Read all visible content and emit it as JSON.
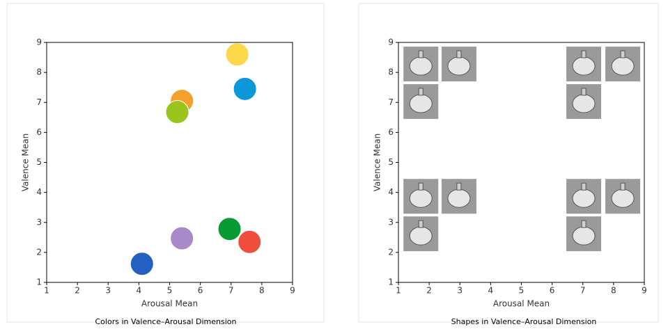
{
  "chart_data": [
    {
      "type": "scatter",
      "title": "Colors in Valence–Arousal Dimension",
      "xlabel": "Arousal Mean",
      "ylabel": "Valence Mean",
      "x": [
        7.2,
        7.45,
        5.4,
        5.25,
        6.95,
        7.6,
        5.4,
        4.1
      ],
      "y": [
        8.6,
        7.45,
        7.05,
        6.68,
        2.78,
        2.35,
        2.47,
        1.62
      ],
      "colors": [
        "#fbd94a",
        "#0c97d8",
        "#f5a02a",
        "#9bc41c",
        "#0a9a34",
        "#f04e3c",
        "#a98ac8",
        "#2460c0"
      ],
      "xlim": [
        1,
        9
      ],
      "ylim": [
        1,
        9
      ],
      "xticks": [
        1,
        2,
        3,
        4,
        5,
        6,
        7,
        8,
        9
      ],
      "yticks": [
        1,
        2,
        3,
        4,
        5,
        6,
        7,
        8,
        9
      ]
    },
    {
      "type": "scatter",
      "title": "Shapes in Valence–Arousal Dimension",
      "xlabel": "Arousal Mean",
      "ylabel": "Valence Mean",
      "x": [
        1.73,
        2.97,
        1.73,
        7.03,
        8.3,
        7.03,
        1.73,
        2.97,
        1.73,
        7.03,
        8.3,
        7.03
      ],
      "y": [
        8.28,
        8.28,
        7.03,
        8.28,
        8.28,
        7.03,
        3.87,
        3.87,
        2.62,
        3.87,
        3.87,
        2.62
      ],
      "marker_color": "#9a9a9a",
      "xlim": [
        1,
        9
      ],
      "ylim": [
        1,
        9
      ],
      "xticks": [
        1,
        2,
        3,
        4,
        5,
        6,
        7,
        8,
        9
      ],
      "yticks": [
        1,
        2,
        3,
        4,
        5,
        6,
        7,
        8,
        9
      ]
    }
  ]
}
